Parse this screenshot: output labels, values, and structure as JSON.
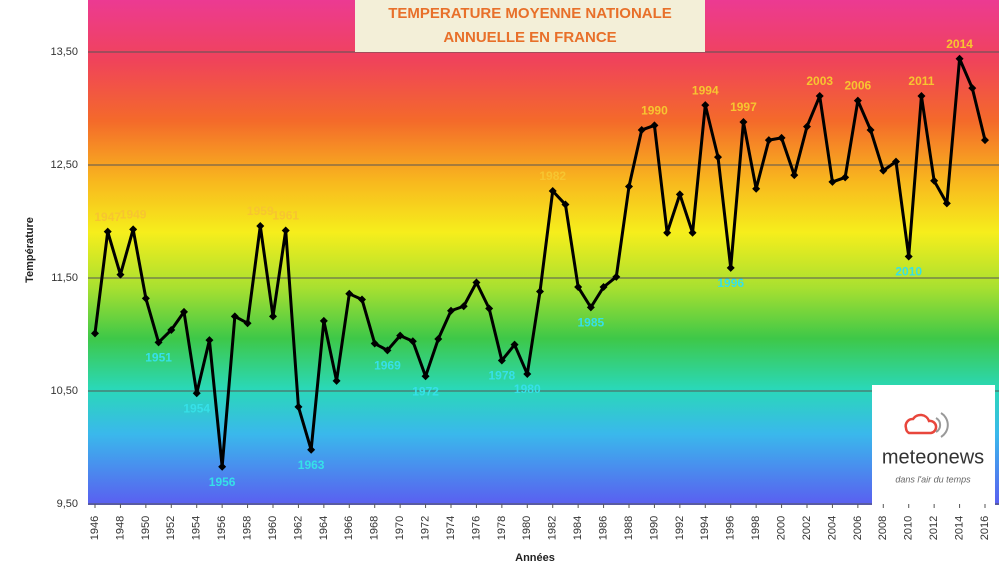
{
  "chart_data": {
    "type": "line",
    "title": [
      "TEMPERATURE MOYENNE NATIONALE",
      "ANNUELLE EN FRANCE"
    ],
    "x_label": "Années",
    "y_label": "Température",
    "x": [
      1946,
      1947,
      1948,
      1949,
      1950,
      1951,
      1952,
      1953,
      1954,
      1955,
      1956,
      1957,
      1958,
      1959,
      1960,
      1961,
      1962,
      1963,
      1964,
      1965,
      1966,
      1967,
      1968,
      1969,
      1970,
      1971,
      1972,
      1973,
      1974,
      1975,
      1976,
      1977,
      1978,
      1979,
      1980,
      1981,
      1982,
      1983,
      1984,
      1985,
      1986,
      1987,
      1988,
      1989,
      1990,
      1991,
      1992,
      1993,
      1994,
      1995,
      1996,
      1997,
      1998,
      1999,
      2000,
      2001,
      2002,
      2003,
      2004,
      2005,
      2006,
      2007,
      2008,
      2009,
      2010,
      2011,
      2012,
      2013,
      2014,
      2015,
      2016
    ],
    "series": [
      {
        "name": "Température",
        "color": "#000000",
        "values": [
          11.01,
          11.91,
          11.53,
          11.93,
          11.32,
          10.93,
          11.04,
          11.2,
          10.48,
          10.95,
          9.83,
          11.16,
          11.1,
          11.96,
          11.16,
          11.92,
          10.36,
          9.98,
          11.12,
          10.59,
          11.36,
          11.31,
          10.92,
          10.86,
          10.99,
          10.94,
          10.63,
          10.96,
          11.21,
          11.25,
          11.46,
          11.23,
          10.77,
          10.91,
          10.65,
          11.38,
          12.27,
          12.15,
          11.42,
          11.24,
          11.42,
          11.51,
          12.31,
          12.81,
          12.85,
          11.9,
          12.24,
          11.9,
          13.03,
          12.57,
          11.59,
          12.88,
          12.29,
          12.72,
          12.74,
          12.41,
          12.84,
          13.11,
          12.35,
          12.39,
          13.07,
          12.81,
          12.45,
          12.53,
          11.69,
          13.11,
          12.36,
          12.16,
          13.44,
          13.18,
          12.72
        ]
      }
    ],
    "xlim": [
      1946,
      2016
    ],
    "xticks": [
      1946,
      1948,
      1950,
      1952,
      1954,
      1956,
      1958,
      1960,
      1962,
      1964,
      1966,
      1968,
      1970,
      1972,
      1974,
      1976,
      1978,
      1980,
      1982,
      1984,
      1986,
      1988,
      1990,
      1992,
      1994,
      1996,
      1998,
      2000,
      2002,
      2004,
      2006,
      2008,
      2010,
      2012,
      2014,
      2016
    ],
    "ylim": [
      9.5,
      13.96
    ],
    "yticks": [
      {
        "value": 9.5,
        "label": "9,50"
      },
      {
        "value": 10.5,
        "label": "10,50"
      },
      {
        "value": 11.5,
        "label": "11,50"
      },
      {
        "value": 12.5,
        "label": "12,50"
      },
      {
        "value": 13.5,
        "label": "13,50"
      }
    ],
    "grid": true,
    "warm_labels": {
      "color": "#f7c530",
      "texts": [
        "1947",
        "1949",
        "1959",
        "1961",
        "1982",
        "1990",
        "1994",
        "1997",
        "2003",
        "2006",
        "2011",
        "2014"
      ]
    },
    "cold_labels": {
      "color": "#36e0e8",
      "texts": [
        "1951",
        "1954",
        "1956",
        "1963",
        "1969",
        "1972",
        "1978",
        "1980",
        "1985",
        "1996",
        "2010"
      ]
    }
  },
  "logo": {
    "name": "meteonews",
    "tagline": "dans l'air du temps"
  }
}
